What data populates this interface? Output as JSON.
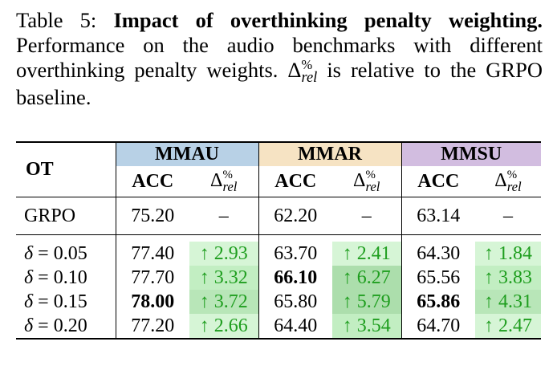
{
  "caption": {
    "label": "Table 5:",
    "title": "Impact of overthinking penalty weighting.",
    "text_1": "Performance on the audio benchmarks with different overthinking penalty weights.",
    "delta_symbol": "Δ",
    "delta_sup": "%",
    "delta_sub": "rel",
    "text_2": "is relative to the GRPO baseline."
  },
  "table": {
    "row_header": "OT",
    "groups": [
      {
        "name": "MMAU",
        "color": "#b8d1e6"
      },
      {
        "name": "MMAR",
        "color": "#f6e3c3"
      },
      {
        "name": "MMSU",
        "color": "#d2bde0"
      }
    ],
    "sub_headers": {
      "acc": "ACC",
      "delta_symbol": "Δ",
      "delta_sup": "%",
      "delta_sub": "rel"
    },
    "baseline": {
      "method": "GRPO",
      "values": [
        "75.20",
        "–",
        "62.20",
        "–",
        "63.14",
        "–"
      ]
    },
    "delta_symbol": "δ",
    "rows": [
      {
        "ot": "= 0.05",
        "values": [
          "77.40",
          "↑ 2.93",
          "63.70",
          "↑ 2.41",
          "64.30",
          "↑ 1.84"
        ]
      },
      {
        "ot": "= 0.10",
        "values": [
          "77.70",
          "↑ 3.32",
          "66.10",
          "↑ 6.27",
          "65.56",
          "↑ 3.83"
        ]
      },
      {
        "ot": "= 0.15",
        "values": [
          "78.00",
          "↑ 3.72",
          "65.80",
          "↑ 5.79",
          "65.86",
          "↑ 4.31"
        ]
      },
      {
        "ot": "= 0.20",
        "values": [
          "77.20",
          "↑ 2.66",
          "64.40",
          "↑ 3.54",
          "64.70",
          "↑ 2.47"
        ]
      }
    ],
    "bold_values": [
      "78.00 (MMAU, δ = 0.15)",
      "66.10 (MMAR, δ = 0.10)",
      "65.86 (MMSU, δ = 0.15)"
    ],
    "accent_color": "#1f9e1f"
  }
}
